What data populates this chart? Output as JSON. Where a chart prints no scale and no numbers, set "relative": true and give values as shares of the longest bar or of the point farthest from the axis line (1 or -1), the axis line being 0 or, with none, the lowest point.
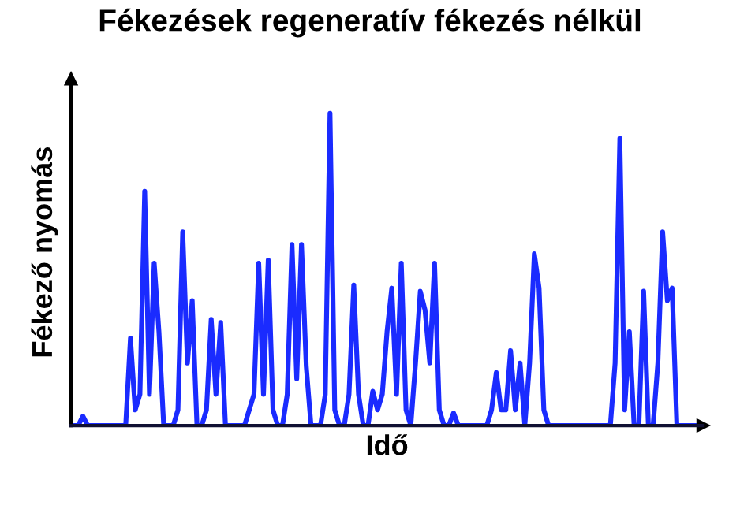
{
  "chart_data": {
    "type": "line",
    "title": "Fékezések regeneratív fékezés nélkül",
    "xlabel": "Idő",
    "ylabel": "Fékező nyomás",
    "relative": true,
    "legend": false,
    "marker": "none",
    "line_style": "solid",
    "categories": [
      null,
      null,
      null,
      null,
      null,
      null,
      null,
      null,
      null,
      null,
      null,
      null,
      null,
      null,
      null,
      null,
      null,
      null,
      null,
      null,
      null,
      null,
      null,
      null,
      null,
      null,
      null,
      null,
      null,
      null,
      null,
      null,
      null,
      null,
      null,
      null,
      null,
      null,
      null,
      null,
      null,
      null,
      null,
      null,
      null,
      null,
      null,
      null,
      null,
      null,
      null,
      null,
      null,
      null,
      null,
      null,
      null,
      null,
      null,
      null,
      null,
      null,
      null,
      null,
      null,
      null,
      null,
      null,
      null,
      null,
      null,
      null,
      null,
      null,
      null,
      null,
      null,
      null,
      null,
      null,
      null,
      null,
      null,
      null,
      null,
      null,
      null,
      null,
      null,
      null,
      null,
      null,
      null,
      null,
      null,
      null,
      null,
      null,
      null,
      null,
      null,
      null,
      null,
      null,
      null,
      null,
      null,
      null,
      null,
      null,
      null,
      null,
      null,
      null,
      null,
      null,
      null,
      null,
      null,
      null,
      null,
      null,
      null,
      null,
      null,
      null,
      null,
      null,
      null,
      null,
      null,
      null,
      null
    ],
    "series": [
      {
        "color": "#1a2bff",
        "values": [
          0,
          0,
          0.03,
          0,
          0,
          0,
          0,
          0,
          0,
          0,
          0,
          0,
          0.28,
          0.05,
          0.1,
          0.75,
          0.1,
          0.52,
          0.3,
          0,
          0,
          0,
          0.05,
          0.62,
          0.2,
          0.4,
          0,
          0,
          0.05,
          0.34,
          0.1,
          0.33,
          0,
          0,
          0,
          0,
          0,
          0.05,
          0.1,
          0.52,
          0.1,
          0.53,
          0.05,
          0,
          0,
          0.1,
          0.58,
          0.15,
          0.58,
          0.19,
          0,
          0,
          0,
          0.1,
          1,
          0.05,
          0,
          0,
          0.1,
          0.45,
          0.1,
          0,
          0,
          0.11,
          0.05,
          0.1,
          0.3,
          0.44,
          0.1,
          0.52,
          0.05,
          0,
          0.2,
          0.43,
          0.37,
          0.2,
          0.52,
          0.05,
          0,
          0,
          0.04,
          0,
          0,
          0,
          0,
          0,
          0,
          0,
          0.05,
          0.17,
          0.05,
          0.05,
          0.24,
          0.05,
          0.2,
          0,
          0.2,
          0.55,
          0.44,
          0.05,
          0,
          0,
          0,
          0,
          0,
          0,
          0,
          0,
          0,
          0,
          0,
          0,
          0,
          0,
          0.2,
          0.92,
          0.05,
          0.3,
          0,
          0,
          0.43,
          0,
          0,
          0.2,
          0.62,
          0.4,
          0.44,
          0,
          0,
          0,
          0,
          0,
          0
        ]
      }
    ]
  }
}
